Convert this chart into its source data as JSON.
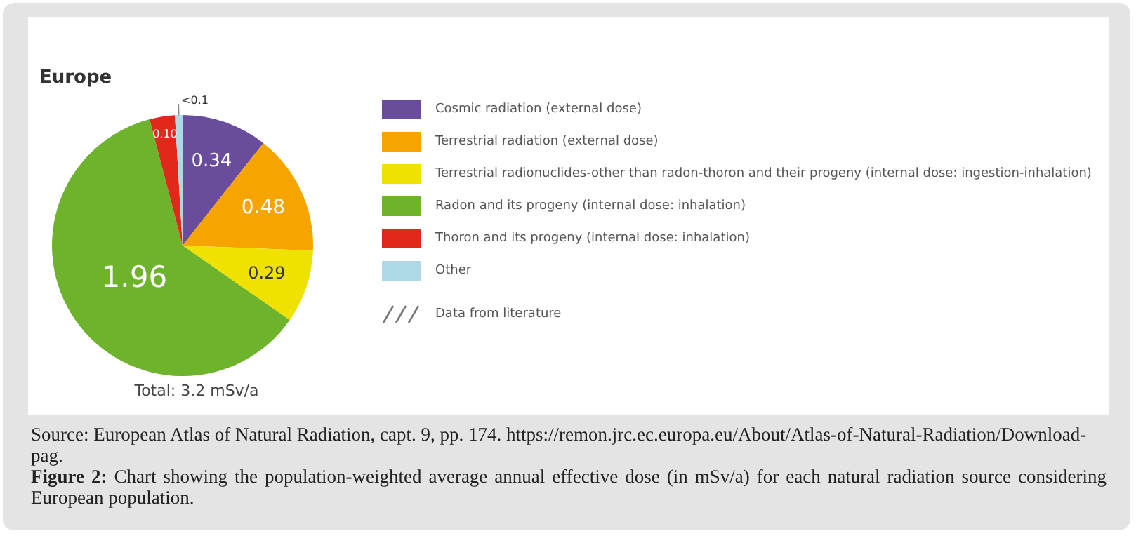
{
  "chart_data": {
    "type": "pie",
    "title": "Europe",
    "categories": [
      "Cosmic radiation (external dose)",
      "Terrestrial radiation (external dose)",
      "Terrestrial radionuclides-other than radon-thoron and their progeny (internal dose: ingestion-inhalation)",
      "Radon and its progeny (internal dose: inhalation)",
      "Thoron and its progeny (internal dose: inhalation)",
      "Other"
    ],
    "values": [
      0.34,
      0.48,
      0.29,
      1.96,
      0.1,
      0.03
    ],
    "value_labels": [
      "0.34",
      "0.48",
      "0.29",
      "1.96",
      "0.10",
      "<0.1"
    ],
    "colors": [
      "#6a4c9c",
      "#f6a500",
      "#efe100",
      "#6db32b",
      "#e2281b",
      "#add8e6"
    ],
    "legend": "right",
    "annotations": [
      "Data from literature",
      "Total: 3.2 mSv/a",
      "Source: European Atlas of Natural Radiation, capt. 9, pp. 174. https://remon.jrc.ec.europa.eu/About/Atlas-of-Natural-Radiation/Download-pag.",
      "Figure 2: Chart showing the population-weighted average annual effective dose (in mSv/a) for each natural radiation source considering European population."
    ]
  }
}
